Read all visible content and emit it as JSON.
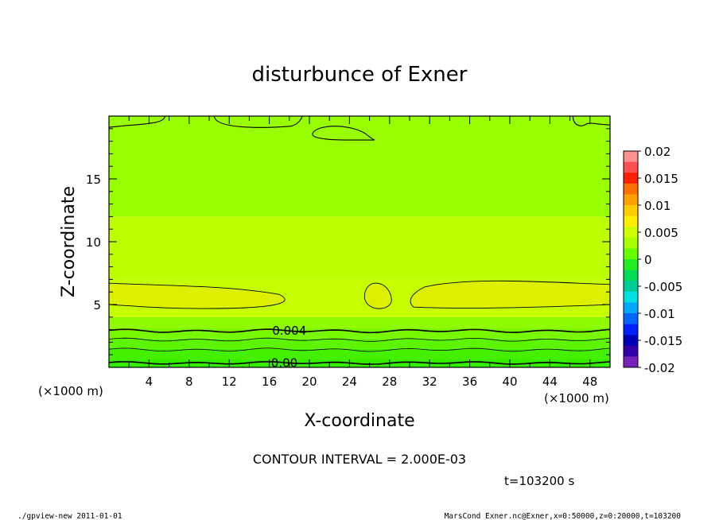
{
  "chart_data": {
    "type": "contour",
    "title": "disturbunce of Exner",
    "xlabel": "X-coordinate",
    "ylabel": "Z-coordinate",
    "x_unit_left": "(×1000 m)",
    "x_unit_right": "(×1000 m)",
    "xlim": [
      0,
      50
    ],
    "ylim": [
      0,
      20
    ],
    "x_ticks": [
      4,
      8,
      12,
      16,
      20,
      24,
      28,
      32,
      36,
      40,
      44,
      48
    ],
    "y_ticks": [
      5,
      10,
      15
    ],
    "contour_labels": [
      {
        "text": "0.004",
        "x": 18,
        "z": 2.9
      },
      {
        "text": "0.00",
        "x": 17.5,
        "z": 0.35
      }
    ],
    "colorbar": {
      "labels": [
        "0.02",
        "0.015",
        "0.01",
        "0.005",
        "0",
        "-0.005",
        "-0.01",
        "-0.015",
        "-0.02"
      ],
      "colors": [
        "#ff9090",
        "#ff5050",
        "#ff2000",
        "#ff7000",
        "#ffa000",
        "#ffcc00",
        "#ffee00",
        "#ccff00",
        "#a8ff00",
        "#66ff00",
        "#22ee22",
        "#00dd55",
        "#00cc99",
        "#00e0e0",
        "#00a8ff",
        "#0066ff",
        "#0022ff",
        "#0000bb",
        "#3300aa",
        "#7722bb"
      ]
    },
    "bands": [
      {
        "z_from": 0,
        "z_to": 0.6,
        "color": "#33ee00"
      },
      {
        "z_from": 0.6,
        "z_to": 1.5,
        "color": "#44f000"
      },
      {
        "z_from": 1.5,
        "z_to": 2.3,
        "color": "#5cf400"
      },
      {
        "z_from": 2.3,
        "z_to": 3.1,
        "color": "#77f800"
      },
      {
        "z_from": 3.1,
        "z_to": 4.0,
        "color": "#8ffa00"
      },
      {
        "z_from": 4.0,
        "z_to": 7.0,
        "color": "#c6ff00"
      },
      {
        "z_from": 7.0,
        "z_to": 12.0,
        "color": "#bbff00"
      },
      {
        "z_from": 12.0,
        "z_to": 20.0,
        "color": "#99ff00"
      }
    ],
    "highlight_color": "#ddf000",
    "contour_interval_text": "CONTOUR INTERVAL = 2.000E-03",
    "time_text": "t=103200 s"
  },
  "footer": {
    "left": "./gpview-new 2011-01-01",
    "right": "MarsCond_Exner.nc@Exner,x=0:50000,z=0:20000,t=103200"
  }
}
